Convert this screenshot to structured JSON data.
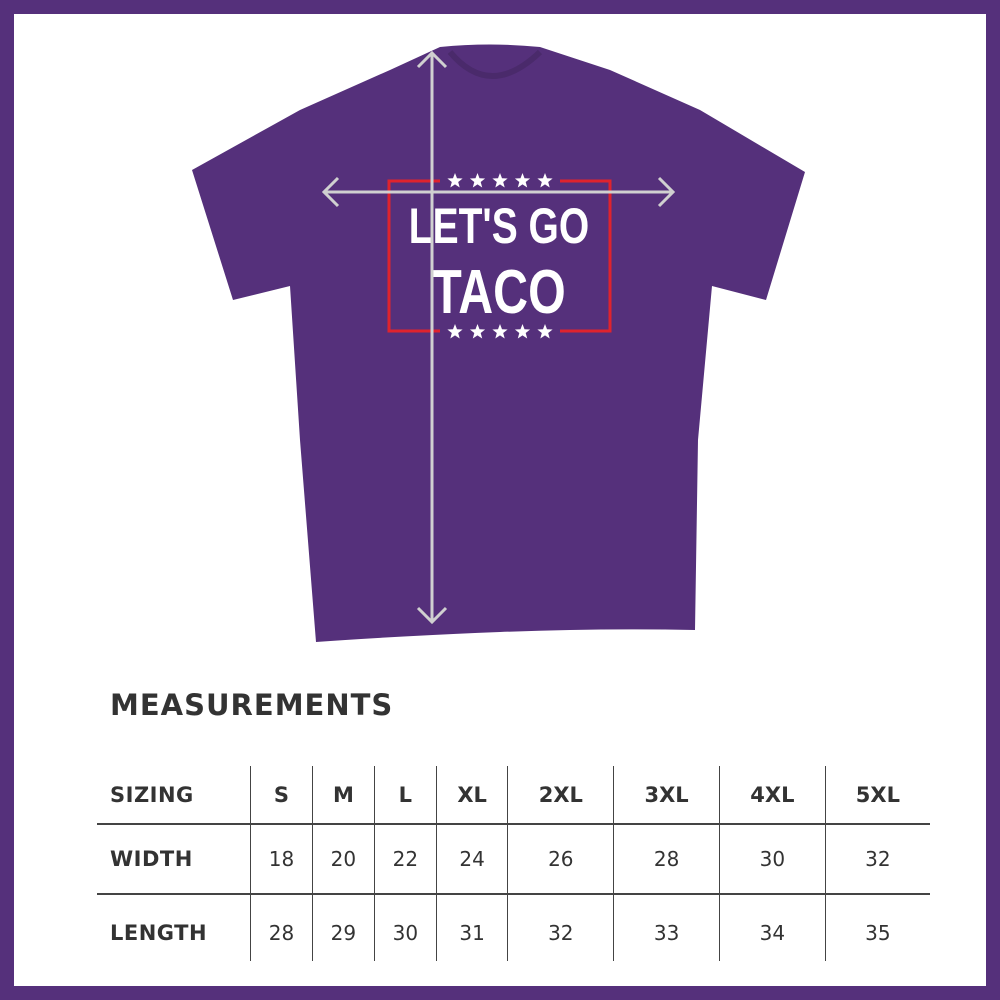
{
  "shirt": {
    "color": "#55307b",
    "print_line1": "LET'S GO",
    "print_line2": "TACO",
    "frame_color": "#e0232e",
    "stars_per_row": 5
  },
  "measurements_title": "MEASUREMENTS",
  "table": {
    "headers": [
      "SIZING",
      "S",
      "M",
      "L",
      "XL",
      "2XL",
      "3XL",
      "4XL",
      "5XL"
    ],
    "rows": [
      {
        "label": "WIDTH",
        "values": [
          "18",
          "20",
          "22",
          "24",
          "26",
          "28",
          "30",
          "32"
        ]
      },
      {
        "label": "LENGTH",
        "values": [
          "28",
          "29",
          "30",
          "31",
          "32",
          "33",
          "34",
          "35"
        ]
      }
    ]
  }
}
